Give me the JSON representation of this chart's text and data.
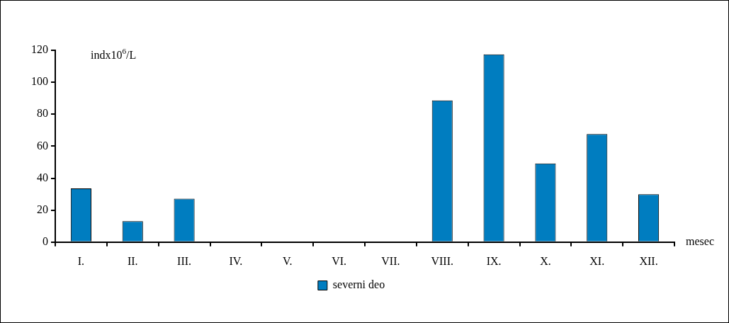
{
  "chart_data": {
    "type": "bar",
    "ylabel": "indx10$^{6}$/L",
    "xlabel": "mesec",
    "categories": [
      "I.",
      "II.",
      "III.",
      "IV.",
      "V.",
      "VI.",
      "VII.",
      "VIII.",
      "IX.",
      "X.",
      "XI.",
      "XII."
    ],
    "series": [
      {
        "name": "severni deo",
        "color": "#007dc0",
        "values": [
          33.6,
          13.1,
          27.2,
          0,
          0,
          0,
          0,
          88.6,
          117.4,
          49.2,
          67.6,
          29.9
        ]
      }
    ],
    "ylim": [
      0,
      120
    ],
    "yticks": [
      0,
      20,
      40,
      60,
      80,
      100,
      120
    ],
    "grid": false,
    "legend": "bottom"
  }
}
